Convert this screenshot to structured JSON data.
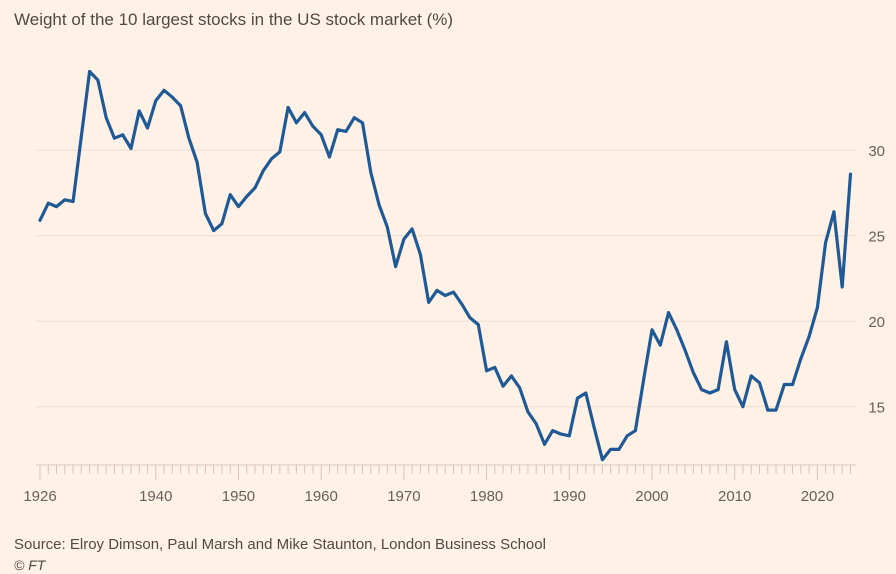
{
  "chart_data": {
    "type": "line",
    "title": "Weight of the 10 largest stocks in the US stock market (%)",
    "xlabel": "",
    "ylabel": "",
    "xlim": [
      1926,
      2024
    ],
    "ylim": [
      11.6,
      35
    ],
    "x_ticks": [
      1926,
      1940,
      1950,
      1960,
      1970,
      1980,
      1990,
      2000,
      2010,
      2020
    ],
    "y_ticks": [
      15,
      20,
      25,
      30
    ],
    "y_axis_side": "right",
    "grid": "horizontal",
    "line_color": "#1f5a96",
    "x": [
      1926,
      1927,
      1928,
      1929,
      1930,
      1931,
      1932,
      1933,
      1934,
      1935,
      1936,
      1937,
      1938,
      1939,
      1940,
      1941,
      1942,
      1943,
      1944,
      1945,
      1946,
      1947,
      1948,
      1949,
      1950,
      1951,
      1952,
      1953,
      1954,
      1955,
      1956,
      1957,
      1958,
      1959,
      1960,
      1961,
      1962,
      1963,
      1964,
      1965,
      1966,
      1967,
      1968,
      1969,
      1970,
      1971,
      1972,
      1973,
      1974,
      1975,
      1976,
      1977,
      1978,
      1979,
      1980,
      1981,
      1982,
      1983,
      1984,
      1985,
      1986,
      1987,
      1988,
      1989,
      1990,
      1991,
      1992,
      1993,
      1994,
      1995,
      1996,
      1997,
      1998,
      1999,
      2000,
      2001,
      2002,
      2003,
      2004,
      2005,
      2006,
      2007,
      2008,
      2009,
      2010,
      2011,
      2012,
      2013,
      2014,
      2015,
      2016,
      2017,
      2018,
      2019,
      2020,
      2021,
      2022,
      2023,
      2024
    ],
    "values": [
      25.9,
      26.9,
      26.7,
      27.1,
      27.0,
      30.8,
      34.6,
      34.1,
      31.9,
      30.7,
      30.9,
      30.1,
      32.3,
      31.3,
      32.9,
      33.5,
      33.1,
      32.6,
      30.7,
      29.3,
      26.3,
      25.3,
      25.7,
      27.4,
      26.7,
      27.3,
      27.8,
      28.8,
      29.5,
      29.9,
      32.5,
      31.6,
      32.2,
      31.4,
      30.9,
      29.6,
      31.2,
      31.1,
      31.9,
      31.6,
      28.7,
      26.8,
      25.5,
      23.2,
      24.8,
      25.4,
      23.9,
      21.1,
      21.8,
      21.5,
      21.7,
      21.0,
      20.2,
      19.8,
      17.1,
      17.3,
      16.2,
      16.8,
      16.1,
      14.7,
      14.0,
      12.8,
      13.6,
      13.4,
      13.3,
      15.5,
      15.8,
      13.8,
      11.9,
      12.5,
      12.5,
      13.3,
      13.6,
      16.6,
      19.5,
      18.6,
      20.5,
      19.5,
      18.3,
      17.0,
      16.0,
      15.8,
      16.0,
      18.8,
      16.0,
      15.0,
      16.8,
      16.4,
      14.8,
      14.8,
      16.3,
      16.3,
      17.8,
      19.1,
      20.8,
      24.6,
      26.4,
      22.0,
      28.6
    ]
  },
  "footer": {
    "source": "Source: Elroy Dimson, Paul Marsh and Mike Staunton, London Business School",
    "copyright": "© FT"
  }
}
